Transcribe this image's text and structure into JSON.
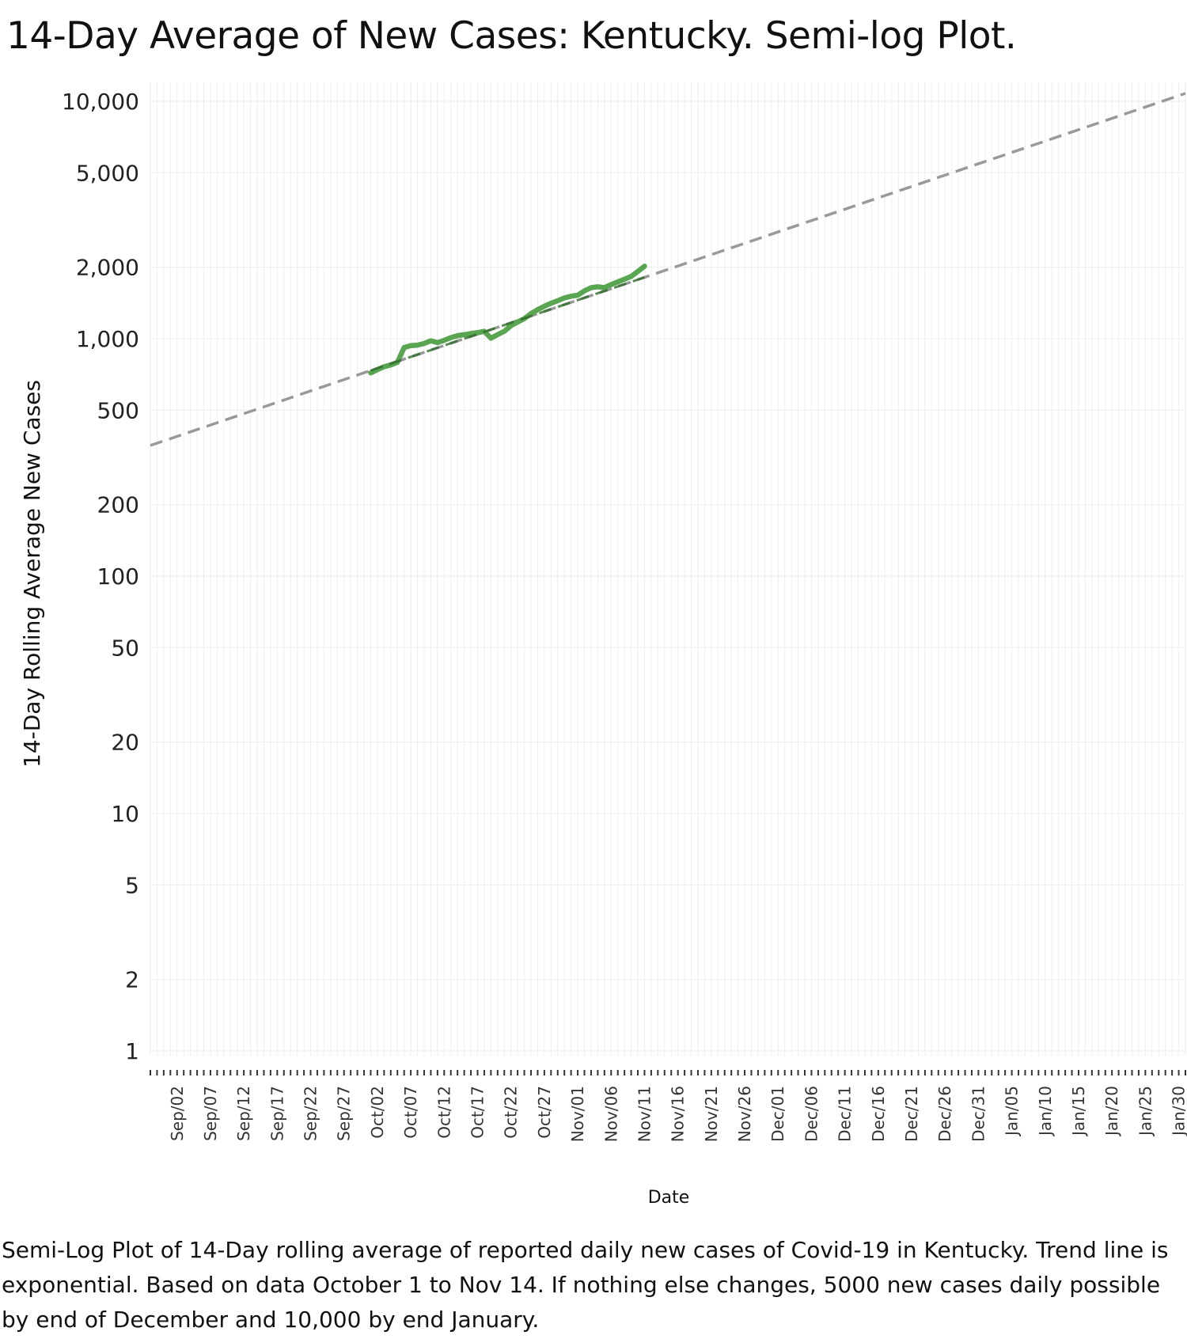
{
  "title": "14-Day Average of New Cases:  Kentucky.  Semi-log Plot.",
  "caption": "Semi-Log Plot of 14-Day rolling average of reported daily new cases of Covid-19 in Kentucky. Trend line is exponential. Based on data October 1 to Nov 14. If nothing else changes, 5000 new cases daily possible by end of December and 10,000 by end January.",
  "colors": {
    "data_line": "#5aa552",
    "trend_line": "#999999",
    "trend_overlap": "#2e6b2a",
    "grid": "#eeeeee"
  },
  "chart_data": {
    "type": "line",
    "title": "14-Day Average of New Cases:  Kentucky.  Semi-log Plot.",
    "xlabel": "Date",
    "ylabel": "14-Day Rolling Average New Cases",
    "y_scale": "log",
    "ylim": [
      1,
      11000
    ],
    "xlim": [
      "2020-08-29",
      "2021-01-31"
    ],
    "grid": true,
    "y_ticks": [
      {
        "value": 10000,
        "label": "10,000"
      },
      {
        "value": 5000,
        "label": "5,000"
      },
      {
        "value": 2000,
        "label": "2,000"
      },
      {
        "value": 1000,
        "label": "1,000"
      },
      {
        "value": 500,
        "label": "500"
      },
      {
        "value": 200,
        "label": "200"
      },
      {
        "value": 100,
        "label": "100"
      },
      {
        "value": 50,
        "label": "50"
      },
      {
        "value": 20,
        "label": "20"
      },
      {
        "value": 10,
        "label": "10"
      },
      {
        "value": 5,
        "label": "5"
      },
      {
        "value": 2,
        "label": "2"
      },
      {
        "value": 1,
        "label": "1"
      }
    ],
    "x_ticks": [
      {
        "date": "2020-09-02",
        "label": "Sep/02"
      },
      {
        "date": "2020-09-07",
        "label": "Sep/07"
      },
      {
        "date": "2020-09-12",
        "label": "Sep/12"
      },
      {
        "date": "2020-09-17",
        "label": "Sep/17"
      },
      {
        "date": "2020-09-22",
        "label": "Sep/22"
      },
      {
        "date": "2020-09-27",
        "label": "Sep/27"
      },
      {
        "date": "2020-10-02",
        "label": "Oct/02"
      },
      {
        "date": "2020-10-07",
        "label": "Oct/07"
      },
      {
        "date": "2020-10-12",
        "label": "Oct/12"
      },
      {
        "date": "2020-10-17",
        "label": "Oct/17"
      },
      {
        "date": "2020-10-22",
        "label": "Oct/22"
      },
      {
        "date": "2020-10-27",
        "label": "Oct/27"
      },
      {
        "date": "2020-11-01",
        "label": "Nov/01"
      },
      {
        "date": "2020-11-06",
        "label": "Nov/06"
      },
      {
        "date": "2020-11-11",
        "label": "Nov/11"
      },
      {
        "date": "2020-11-16",
        "label": "Nov/16"
      },
      {
        "date": "2020-11-21",
        "label": "Nov/21"
      },
      {
        "date": "2020-11-26",
        "label": "Nov/26"
      },
      {
        "date": "2020-12-01",
        "label": "Dec/01"
      },
      {
        "date": "2020-12-06",
        "label": "Dec/06"
      },
      {
        "date": "2020-12-11",
        "label": "Dec/11"
      },
      {
        "date": "2020-12-16",
        "label": "Dec/16"
      },
      {
        "date": "2020-12-21",
        "label": "Dec/21"
      },
      {
        "date": "2020-12-26",
        "label": "Dec/26"
      },
      {
        "date": "2020-12-31",
        "label": "Dec/31"
      },
      {
        "date": "2021-01-05",
        "label": "Jan/05"
      },
      {
        "date": "2021-01-10",
        "label": "Jan/10"
      },
      {
        "date": "2021-01-15",
        "label": "Jan/15"
      },
      {
        "date": "2021-01-20",
        "label": "Jan/20"
      },
      {
        "date": "2021-01-25",
        "label": "Jan/25"
      },
      {
        "date": "2021-01-30",
        "label": "Jan/30"
      }
    ],
    "series": [
      {
        "points": [
          {
            "x": "2020-10-01",
            "y": 718
          },
          {
            "x": "2020-10-02",
            "y": 740
          },
          {
            "x": "2020-10-03",
            "y": 762
          },
          {
            "x": "2020-10-04",
            "y": 775
          },
          {
            "x": "2020-10-05",
            "y": 795
          },
          {
            "x": "2020-10-06",
            "y": 918
          },
          {
            "x": "2020-10-07",
            "y": 935
          },
          {
            "x": "2020-10-08",
            "y": 940
          },
          {
            "x": "2020-10-09",
            "y": 955
          },
          {
            "x": "2020-10-10",
            "y": 980
          },
          {
            "x": "2020-10-11",
            "y": 962
          },
          {
            "x": "2020-10-12",
            "y": 985
          },
          {
            "x": "2020-10-13",
            "y": 1010
          },
          {
            "x": "2020-10-14",
            "y": 1030
          },
          {
            "x": "2020-10-15",
            "y": 1040
          },
          {
            "x": "2020-10-16",
            "y": 1052
          },
          {
            "x": "2020-10-17",
            "y": 1060
          },
          {
            "x": "2020-10-18",
            "y": 1075
          },
          {
            "x": "2020-10-19",
            "y": 1005
          },
          {
            "x": "2020-10-20",
            "y": 1040
          },
          {
            "x": "2020-10-21",
            "y": 1075
          },
          {
            "x": "2020-10-22",
            "y": 1135
          },
          {
            "x": "2020-10-23",
            "y": 1175
          },
          {
            "x": "2020-10-24",
            "y": 1215
          },
          {
            "x": "2020-10-25",
            "y": 1275
          },
          {
            "x": "2020-10-26",
            "y": 1325
          },
          {
            "x": "2020-10-27",
            "y": 1370
          },
          {
            "x": "2020-10-28",
            "y": 1410
          },
          {
            "x": "2020-10-29",
            "y": 1445
          },
          {
            "x": "2020-10-30",
            "y": 1485
          },
          {
            "x": "2020-10-31",
            "y": 1510
          },
          {
            "x": "2020-11-01",
            "y": 1525
          },
          {
            "x": "2020-11-02",
            "y": 1590
          },
          {
            "x": "2020-11-03",
            "y": 1640
          },
          {
            "x": "2020-11-04",
            "y": 1655
          },
          {
            "x": "2020-11-05",
            "y": 1640
          },
          {
            "x": "2020-11-06",
            "y": 1690
          },
          {
            "x": "2020-11-07",
            "y": 1735
          },
          {
            "x": "2020-11-08",
            "y": 1780
          },
          {
            "x": "2020-11-09",
            "y": 1830
          },
          {
            "x": "2020-11-10",
            "y": 1920
          },
          {
            "x": "2020-11-11",
            "y": 2020
          }
        ]
      },
      {
        "style": "dashed-trend",
        "type": "exponential",
        "points": [
          {
            "x": "2020-08-29",
            "y": 355
          },
          {
            "x": "2021-01-31",
            "y": 10800
          }
        ]
      }
    ]
  }
}
